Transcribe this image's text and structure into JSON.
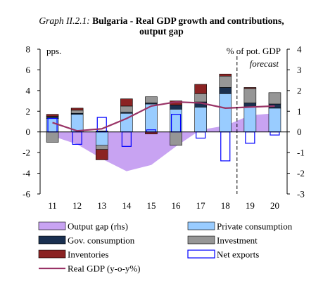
{
  "title_label": "Graph II.2.1:",
  "title_line1": "Bulgaria - Real GDP growth and contributions,",
  "title_line2": "output gap",
  "chart_data": {
    "type": "bar",
    "categories": [
      "11",
      "12",
      "13",
      "14",
      "15",
      "16",
      "17",
      "18",
      "19",
      "20"
    ],
    "ylabel": "pps.",
    "y2label": "% of pot. GDP",
    "ylim": [
      -6,
      8
    ],
    "y_ticks": [
      8,
      6,
      4,
      2,
      0,
      -2,
      -4,
      -6
    ],
    "y2lim": [
      -3,
      4
    ],
    "y2_ticks": [
      4,
      3,
      2,
      1,
      0,
      -1,
      -2,
      -3
    ],
    "forecast_label": "forecast",
    "forecast_start_category": "19",
    "colors": {
      "output_gap": "#c8a3f2",
      "private_consumption": "#99ccff",
      "gov_consumption": "#1a3050",
      "investment": "#969696",
      "inventories": "#8b2323",
      "net_exports": "#0000ff",
      "real_gdp": "#993366"
    },
    "series": [
      {
        "name": "Private consumption",
        "key": "private_consumption",
        "values": [
          1.3,
          1.7,
          -1.3,
          1.8,
          2.7,
          2.2,
          2.4,
          3.7,
          2.4,
          2.3
        ]
      },
      {
        "name": "Gov. consumption",
        "key": "gov_consumption",
        "values": [
          0.2,
          0.1,
          0.1,
          0.1,
          0.1,
          0.4,
          0.5,
          0.6,
          0.4,
          0.4
        ]
      },
      {
        "name": "Investment",
        "key": "investment",
        "values": [
          -1.0,
          0.3,
          -0.4,
          0.6,
          0.6,
          -1.3,
          0.8,
          1.1,
          1.4,
          1.1
        ]
      },
      {
        "name": "Inventories",
        "key": "inventories",
        "values": [
          0.2,
          0.2,
          -1.0,
          0.7,
          -0.2,
          0.4,
          0.9,
          0.2,
          0.1,
          0.0
        ]
      },
      {
        "name": "Net exports",
        "key": "net_exports",
        "values": [
          1.3,
          -1.2,
          1.4,
          -1.4,
          0.2,
          1.7,
          -0.6,
          -2.8,
          -1.1,
          -0.3
        ]
      },
      {
        "name": "Real GDP (y-o-y%)",
        "key": "real_gdp",
        "type": "line",
        "values": [
          0.9,
          0.1,
          0.3,
          1.3,
          2.5,
          2.9,
          2.8,
          2.3,
          2.4,
          2.5
        ]
      },
      {
        "name": "Output gap (rhs)",
        "key": "output_gap",
        "type": "area",
        "axis": "right",
        "values": [
          -0.2,
          -0.6,
          -1.3,
          -1.9,
          -1.6,
          -0.7,
          0.1,
          0.3,
          0.8,
          0.9
        ]
      }
    ],
    "legend": [
      {
        "label": "Output gap (rhs)",
        "key": "output_gap",
        "marker": "fill"
      },
      {
        "label": "Private consumption",
        "key": "private_consumption",
        "marker": "fill"
      },
      {
        "label": "Gov. consumption",
        "key": "gov_consumption",
        "marker": "fill"
      },
      {
        "label": "Investment",
        "key": "investment",
        "marker": "fill"
      },
      {
        "label": "Inventories",
        "key": "inventories",
        "marker": "fill"
      },
      {
        "label": "Net exports",
        "key": "net_exports",
        "marker": "outline"
      },
      {
        "label": "Real GDP (y-o-y%)",
        "key": "real_gdp",
        "marker": "line"
      }
    ]
  }
}
